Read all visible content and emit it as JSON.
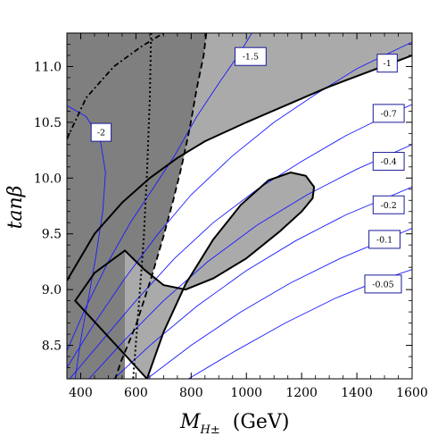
{
  "chart_data": {
    "type": "contour",
    "xlabel": "M",
    "xlabel_sub": "H±",
    "xlabel_unit": "(GeV)",
    "ylabel": "tanβ",
    "xlim": [
      350,
      1600
    ],
    "ylim": [
      8.2,
      11.3
    ],
    "xticks": [
      400,
      600,
      800,
      1000,
      1200,
      1400,
      1600
    ],
    "xtick_labels": [
      "400",
      "600",
      "800",
      "1000",
      "1200",
      "1400",
      "1600"
    ],
    "yticks": [
      8.5,
      9.0,
      9.5,
      10.0,
      10.5,
      11.0
    ],
    "ytick_labels": [
      "8.5",
      "9.0",
      "9.5",
      "10.0",
      "10.5",
      "11.0"
    ],
    "contour_color": "#1a1aff",
    "contour_labels": [
      {
        "text": "-2",
        "x": 474,
        "y": 10.41
      },
      {
        "text": "-1.5",
        "x": 1015,
        "y": 11.09
      },
      {
        "text": "-1",
        "x": 1510,
        "y": 11.03
      },
      {
        "text": "-0.7",
        "x": 1515,
        "y": 10.58
      },
      {
        "text": "-0.4",
        "x": 1515,
        "y": 10.15
      },
      {
        "text": "-0.2",
        "x": 1515,
        "y": 9.76
      },
      {
        "text": "-0.1",
        "x": 1500,
        "y": 9.45
      },
      {
        "text": "-0.05",
        "x": 1495,
        "y": 9.05
      }
    ],
    "regions": [
      {
        "name": "dark-excluded",
        "fill": "#7f7f7f"
      },
      {
        "name": "light-band",
        "fill": "#aaaaaa"
      },
      {
        "name": "lens-region",
        "fill": "#aaaaaa"
      }
    ]
  }
}
